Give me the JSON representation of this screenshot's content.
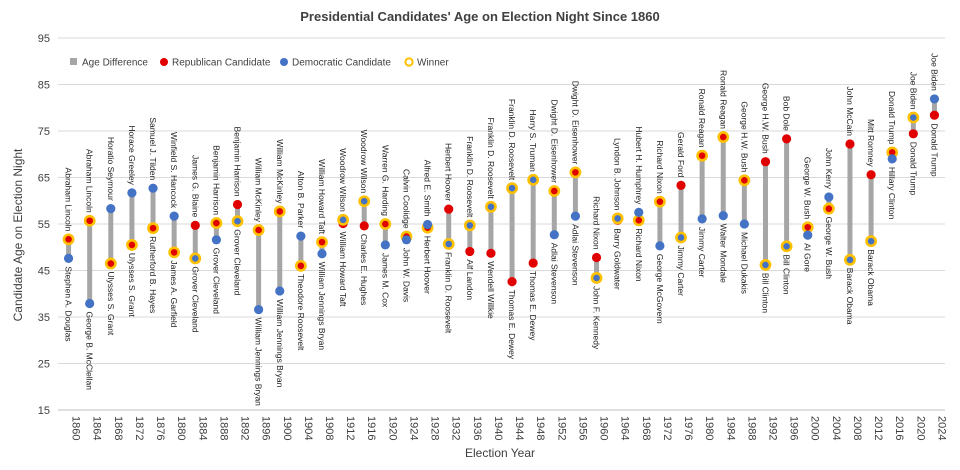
{
  "chart_data": {
    "type": "dot-range",
    "title": "Presidential Candidates' Age on Election Night Since 1860",
    "xlabel": "Election Year",
    "ylabel": "Candidate Age on Election Night",
    "ylim": [
      15,
      95
    ],
    "yticks": [
      15,
      25,
      35,
      45,
      55,
      65,
      75,
      85,
      95
    ],
    "grid": true,
    "legend_position": "top-left",
    "legend": [
      {
        "key": "diff",
        "label": "Age Difference"
      },
      {
        "key": "rep",
        "label": "Republican Candidate"
      },
      {
        "key": "dem",
        "label": "Democratic Candidate"
      },
      {
        "key": "win",
        "label": "Winner"
      }
    ],
    "colors": {
      "diff": "#a6a6a6",
      "rep": "#e00000",
      "dem": "#4472c4",
      "winner_ring": "#ffc000",
      "grid": "#d9d9d9",
      "text": "#404040"
    },
    "elections": [
      {
        "year": "1860",
        "rep": {
          "name": "Abraham Lincoln",
          "age": 51.7
        },
        "dem": {
          "name": "Stephen A. Douglas",
          "age": 47.6
        },
        "winner": "rep"
      },
      {
        "year": "1864",
        "rep": {
          "name": "Abraham Lincoln",
          "age": 55.7
        },
        "dem": {
          "name": "George B. McClellan",
          "age": 37.9
        },
        "winner": "rep"
      },
      {
        "year": "1868",
        "rep": {
          "name": "Ulysses S. Grant",
          "age": 46.5
        },
        "dem": {
          "name": "Horatio Seymour",
          "age": 58.3
        },
        "winner": "rep"
      },
      {
        "year": "1872",
        "rep": {
          "name": "Ulysses S. Grant",
          "age": 50.5
        },
        "dem": {
          "name": "Horace Greeley",
          "age": 61.7
        },
        "winner": "rep"
      },
      {
        "year": "1876",
        "rep": {
          "name": "Rutherford B. Hayes",
          "age": 54.1
        },
        "dem": {
          "name": "Samuel J. Tilden",
          "age": 62.7
        },
        "winner": "rep"
      },
      {
        "year": "1880",
        "rep": {
          "name": "James A. Garfield",
          "age": 48.9
        },
        "dem": {
          "name": "Winfield S. Hancock",
          "age": 56.7
        },
        "winner": "rep"
      },
      {
        "year": "1884",
        "rep": {
          "name": "James G. Blaine",
          "age": 54.7
        },
        "dem": {
          "name": "Grover Cleveland",
          "age": 47.6
        },
        "winner": "dem"
      },
      {
        "year": "1888",
        "rep": {
          "name": "Benjamin Harrison",
          "age": 55.2
        },
        "dem": {
          "name": "Grover Cleveland",
          "age": 51.6
        },
        "winner": "rep"
      },
      {
        "year": "1892",
        "rep": {
          "name": "Benjamin Harrison",
          "age": 59.2
        },
        "dem": {
          "name": "Grover Cleveland",
          "age": 55.6
        },
        "winner": "dem"
      },
      {
        "year": "1896",
        "rep": {
          "name": "William McKinley",
          "age": 53.7
        },
        "dem": {
          "name": "William Jennings Bryan",
          "age": 36.6
        },
        "winner": "rep"
      },
      {
        "year": "1900",
        "rep": {
          "name": "William McKinley",
          "age": 57.7
        },
        "dem": {
          "name": "William Jennings Bryan",
          "age": 40.6
        },
        "winner": "rep"
      },
      {
        "year": "1904",
        "rep": {
          "name": "Theodore Roosevelt",
          "age": 46.0
        },
        "dem": {
          "name": "Alton B. Parker",
          "age": 52.4
        },
        "winner": "rep"
      },
      {
        "year": "1908",
        "rep": {
          "name": "William Howard Taft",
          "age": 51.1
        },
        "dem": {
          "name": "William Jennings Bryan",
          "age": 48.6
        },
        "winner": "rep"
      },
      {
        "year": "1912",
        "rep": {
          "name": "William Howard Taft",
          "age": 55.1
        },
        "dem": {
          "name": "Woodrow Wilson",
          "age": 55.9
        },
        "winner": "dem"
      },
      {
        "year": "1916",
        "rep": {
          "name": "Charles E. Hughes",
          "age": 54.6
        },
        "dem": {
          "name": "Woodrow Wilson",
          "age": 59.9
        },
        "winner": "dem"
      },
      {
        "year": "1920",
        "rep": {
          "name": "Warren G. Harding",
          "age": 55.0
        },
        "dem": {
          "name": "James M. Cox",
          "age": 50.5
        },
        "winner": "rep"
      },
      {
        "year": "1924",
        "rep": {
          "name": "Calvin Coolidge",
          "age": 52.3
        },
        "dem": {
          "name": "John W. Davis",
          "age": 51.6
        },
        "winner": "rep"
      },
      {
        "year": "1928",
        "rep": {
          "name": "Herbert Hoover",
          "age": 54.2
        },
        "dem": {
          "name": "Alfred E. Smith",
          "age": 54.9
        },
        "winner": "rep"
      },
      {
        "year": "1932",
        "rep": {
          "name": "Herbert Hoover",
          "age": 58.2
        },
        "dem": {
          "name": "Franklin D. Roosevelt",
          "age": 50.7
        },
        "winner": "dem"
      },
      {
        "year": "1936",
        "rep": {
          "name": "Alf Landon",
          "age": 49.1
        },
        "dem": {
          "name": "Franklin D. Roosevelt",
          "age": 54.7
        },
        "winner": "dem"
      },
      {
        "year": "1940",
        "rep": {
          "name": "Wendell Willkie",
          "age": 48.7
        },
        "dem": {
          "name": "Franklin D. Roosevelt",
          "age": 58.7
        },
        "winner": "dem"
      },
      {
        "year": "1944",
        "rep": {
          "name": "Thomas E. Dewey",
          "age": 42.6
        },
        "dem": {
          "name": "Franklin D. Roosevelt",
          "age": 62.7
        },
        "winner": "dem"
      },
      {
        "year": "1948",
        "rep": {
          "name": "Thomas E. Dewey",
          "age": 46.6
        },
        "dem": {
          "name": "Harry S. Truman",
          "age": 64.5
        },
        "winner": "dem"
      },
      {
        "year": "1952",
        "rep": {
          "name": "Dwight D. Eisenhower",
          "age": 62.1
        },
        "dem": {
          "name": "Adlai Stevenson",
          "age": 52.7
        },
        "winner": "rep"
      },
      {
        "year": "1956",
        "rep": {
          "name": "Dwight D. Eisenhower",
          "age": 66.1
        },
        "dem": {
          "name": "Adlai Stevenson",
          "age": 56.7
        },
        "winner": "rep"
      },
      {
        "year": "1960",
        "rep": {
          "name": "Richard Nixon",
          "age": 47.8
        },
        "dem": {
          "name": "John F. Kennedy",
          "age": 43.4
        },
        "winner": "dem"
      },
      {
        "year": "1964",
        "rep": {
          "name": "Barry Goldwater",
          "age": 55.8
        },
        "dem": {
          "name": "Lyndon B. Johnson",
          "age": 56.2
        },
        "winner": "dem"
      },
      {
        "year": "1968",
        "rep": {
          "name": "Richard Nixon",
          "age": 55.8
        },
        "dem": {
          "name": "Hubert H. Humphrey",
          "age": 57.5
        },
        "winner": "rep"
      },
      {
        "year": "1972",
        "rep": {
          "name": "Richard Nixon",
          "age": 59.8
        },
        "dem": {
          "name": "George McGovern",
          "age": 50.3
        },
        "winner": "rep"
      },
      {
        "year": "1976",
        "rep": {
          "name": "Gerald Ford",
          "age": 63.3
        },
        "dem": {
          "name": "Jimmy Carter",
          "age": 52.1
        },
        "winner": "dem"
      },
      {
        "year": "1980",
        "rep": {
          "name": "Ronald Reagan",
          "age": 69.7
        },
        "dem": {
          "name": "Jimmy Carter",
          "age": 56.1
        },
        "winner": "rep"
      },
      {
        "year": "1984",
        "rep": {
          "name": "Ronald Reagan",
          "age": 73.7
        },
        "dem": {
          "name": "Walter Mondale",
          "age": 56.8
        },
        "winner": "rep"
      },
      {
        "year": "1988",
        "rep": {
          "name": "George H.W. Bush",
          "age": 64.4
        },
        "dem": {
          "name": "Michael Dukakis",
          "age": 55.0
        },
        "winner": "rep"
      },
      {
        "year": "1992",
        "rep": {
          "name": "George H.W. Bush",
          "age": 68.4
        },
        "dem": {
          "name": "Bill Clinton",
          "age": 46.2
        },
        "winner": "dem"
      },
      {
        "year": "1996",
        "rep": {
          "name": "Bob Dole",
          "age": 73.3
        },
        "dem": {
          "name": "Bill Clinton",
          "age": 50.2
        },
        "winner": "dem"
      },
      {
        "year": "2000",
        "rep": {
          "name": "George W. Bush",
          "age": 54.3
        },
        "dem": {
          "name": "Al Gore",
          "age": 52.6
        },
        "winner": "rep"
      },
      {
        "year": "2004",
        "rep": {
          "name": "George W. Bush",
          "age": 58.3
        },
        "dem": {
          "name": "John Kerry",
          "age": 60.8
        },
        "winner": "rep"
      },
      {
        "year": "2008",
        "rep": {
          "name": "John McCain",
          "age": 72.2
        },
        "dem": {
          "name": "Barack Obama",
          "age": 47.3
        },
        "winner": "dem"
      },
      {
        "year": "2012",
        "rep": {
          "name": "Mitt Romney",
          "age": 65.6
        },
        "dem": {
          "name": "Barack Obama",
          "age": 51.3
        },
        "winner": "dem"
      },
      {
        "year": "2016",
        "rep": {
          "name": "Donald Trump",
          "age": 70.4
        },
        "dem": {
          "name": "Hillary Clinton",
          "age": 69.0
        },
        "winner": "rep"
      },
      {
        "year": "2020",
        "rep": {
          "name": "Donald Trump",
          "age": 74.4
        },
        "dem": {
          "name": "Joe Biden",
          "age": 77.9
        },
        "winner": "dem"
      },
      {
        "year": "2024",
        "rep": {
          "name": "Donald Trump",
          "age": 78.4
        },
        "dem": {
          "name": "Joe Biden",
          "age": 81.9
        },
        "winner": null
      }
    ]
  }
}
